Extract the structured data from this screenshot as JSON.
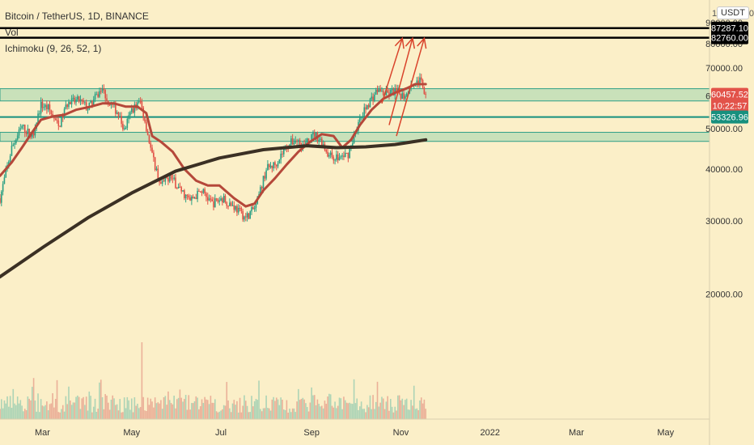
{
  "legend": {
    "symbol": "Bitcoin / TetherUS, 1D, BINANCE",
    "vol": "Vol",
    "ichimoku": "Ichimoku (9, 26, 52, 1)"
  },
  "price_axis": {
    "top_partial_label": "100000.00",
    "unit": "USDT"
  },
  "chart_data": {
    "type": "candlestick",
    "title": "Bitcoin / TetherUS, 1D, BINANCE",
    "x_ticks": [
      "Mar",
      "May",
      "Jul",
      "Sep",
      "Nov",
      "2022",
      "Mar",
      "May"
    ],
    "x_ticks_days": [
      59,
      120,
      181,
      243,
      304,
      365,
      424,
      485
    ],
    "x_range_days": [
      30,
      515
    ],
    "y_ticks": [
      20000,
      30000,
      40000,
      50000,
      60000,
      70000,
      80000,
      90000
    ],
    "y_range": [
      10000,
      102000
    ],
    "y_scale": "log",
    "price_labels": [
      {
        "value": "87287.10",
        "price": 87287.1,
        "kind": "horizontal-line"
      },
      {
        "value": "82760.00",
        "price": 82760,
        "kind": "horizontal-line"
      },
      {
        "value": "60457.52",
        "price": 60457.52,
        "kind": "last-price",
        "countdown": "10:22:57"
      },
      {
        "value": "53326.96",
        "price": 53326.96,
        "kind": "support-line"
      }
    ],
    "zones": [
      {
        "low": 58300,
        "high": 62400
      },
      {
        "low": 46600,
        "high": 49000
      }
    ],
    "price_path": [
      {
        "day": 30,
        "price": 34000
      },
      {
        "day": 38,
        "price": 45000
      },
      {
        "day": 45,
        "price": 50500
      },
      {
        "day": 52,
        "price": 48000
      },
      {
        "day": 58,
        "price": 57000
      },
      {
        "day": 63,
        "price": 56000
      },
      {
        "day": 70,
        "price": 50500
      },
      {
        "day": 76,
        "price": 57500
      },
      {
        "day": 84,
        "price": 58500
      },
      {
        "day": 90,
        "price": 56000
      },
      {
        "day": 100,
        "price": 62500
      },
      {
        "day": 104,
        "price": 58000
      },
      {
        "day": 110,
        "price": 55000
      },
      {
        "day": 115,
        "price": 49500
      },
      {
        "day": 120,
        "price": 55500
      },
      {
        "day": 126,
        "price": 58000
      },
      {
        "day": 130,
        "price": 50500
      },
      {
        "day": 134,
        "price": 43000
      },
      {
        "day": 140,
        "price": 36500
      },
      {
        "day": 146,
        "price": 38500
      },
      {
        "day": 152,
        "price": 36000
      },
      {
        "day": 160,
        "price": 33500
      },
      {
        "day": 168,
        "price": 35500
      },
      {
        "day": 175,
        "price": 33000
      },
      {
        "day": 182,
        "price": 34000
      },
      {
        "day": 190,
        "price": 32500
      },
      {
        "day": 198,
        "price": 30500
      },
      {
        "day": 205,
        "price": 32500
      },
      {
        "day": 212,
        "price": 40000
      },
      {
        "day": 218,
        "price": 41000
      },
      {
        "day": 226,
        "price": 45500
      },
      {
        "day": 232,
        "price": 47000
      },
      {
        "day": 238,
        "price": 45500
      },
      {
        "day": 245,
        "price": 48500
      },
      {
        "day": 250,
        "price": 46500
      },
      {
        "day": 255,
        "price": 43000
      },
      {
        "day": 262,
        "price": 42500
      },
      {
        "day": 268,
        "price": 43500
      },
      {
        "day": 274,
        "price": 50500
      },
      {
        "day": 281,
        "price": 57000
      },
      {
        "day": 288,
        "price": 62000
      },
      {
        "day": 294,
        "price": 60500
      },
      {
        "day": 300,
        "price": 61500
      },
      {
        "day": 306,
        "price": 60000
      },
      {
        "day": 312,
        "price": 64500
      },
      {
        "day": 318,
        "price": 65000
      },
      {
        "day": 321,
        "price": 60457.52
      }
    ],
    "series": [
      {
        "name": "",
        "color": "#b5483a",
        "points": [
          {
            "day": 30,
            "price": 38500
          },
          {
            "day": 38,
            "price": 41500
          },
          {
            "day": 45,
            "price": 45000
          },
          {
            "day": 52,
            "price": 49000
          },
          {
            "day": 58,
            "price": 52500
          },
          {
            "day": 66,
            "price": 53500
          },
          {
            "day": 74,
            "price": 54000
          },
          {
            "day": 82,
            "price": 55500
          },
          {
            "day": 92,
            "price": 56500
          },
          {
            "day": 100,
            "price": 57500
          },
          {
            "day": 108,
            "price": 57500
          },
          {
            "day": 116,
            "price": 56500
          },
          {
            "day": 124,
            "price": 56500
          },
          {
            "day": 130,
            "price": 54500
          },
          {
            "day": 134,
            "price": 48000
          },
          {
            "day": 140,
            "price": 46500
          },
          {
            "day": 148,
            "price": 44000
          },
          {
            "day": 156,
            "price": 40000
          },
          {
            "day": 164,
            "price": 37500
          },
          {
            "day": 172,
            "price": 36500
          },
          {
            "day": 180,
            "price": 36500
          },
          {
            "day": 190,
            "price": 34000
          },
          {
            "day": 198,
            "price": 32500
          },
          {
            "day": 204,
            "price": 33000
          },
          {
            "day": 210,
            "price": 35500
          },
          {
            "day": 218,
            "price": 38000
          },
          {
            "day": 226,
            "price": 41000
          },
          {
            "day": 234,
            "price": 44000
          },
          {
            "day": 242,
            "price": 46500
          },
          {
            "day": 250,
            "price": 48500
          },
          {
            "day": 258,
            "price": 48000
          },
          {
            "day": 264,
            "price": 45000
          },
          {
            "day": 270,
            "price": 47000
          },
          {
            "day": 276,
            "price": 51000
          },
          {
            "day": 284,
            "price": 55500
          },
          {
            "day": 292,
            "price": 59000
          },
          {
            "day": 300,
            "price": 61000
          },
          {
            "day": 308,
            "price": 62500
          },
          {
            "day": 314,
            "price": 64000
          },
          {
            "day": 321,
            "price": 64000
          }
        ]
      },
      {
        "name": "",
        "color": "#3b3024",
        "points": [
          {
            "day": 30,
            "price": 22000
          },
          {
            "day": 60,
            "price": 26000
          },
          {
            "day": 90,
            "price": 30500
          },
          {
            "day": 120,
            "price": 35000
          },
          {
            "day": 150,
            "price": 39500
          },
          {
            "day": 180,
            "price": 42500
          },
          {
            "day": 210,
            "price": 44500
          },
          {
            "day": 240,
            "price": 45500
          },
          {
            "day": 260,
            "price": 45000
          },
          {
            "day": 280,
            "price": 45200
          },
          {
            "day": 300,
            "price": 45800
          },
          {
            "day": 321,
            "price": 47000
          }
        ]
      }
    ],
    "annotations": [
      {
        "type": "arrow",
        "color": "#d9432b",
        "from": {
          "day": 291,
          "price": 57500
        },
        "to": {
          "day": 305,
          "price": 82500
        }
      },
      {
        "type": "arrow",
        "color": "#d9432b",
        "from": {
          "day": 296,
          "price": 51000
        },
        "to": {
          "day": 312,
          "price": 82500
        }
      },
      {
        "type": "arrow",
        "color": "#d9432b",
        "from": {
          "day": 301,
          "price": 48000
        },
        "to": {
          "day": 320,
          "price": 82500
        }
      }
    ],
    "volume": {
      "max_day": 127,
      "color_up": "#e8a58f",
      "color_down": "#9fcfb3"
    }
  }
}
